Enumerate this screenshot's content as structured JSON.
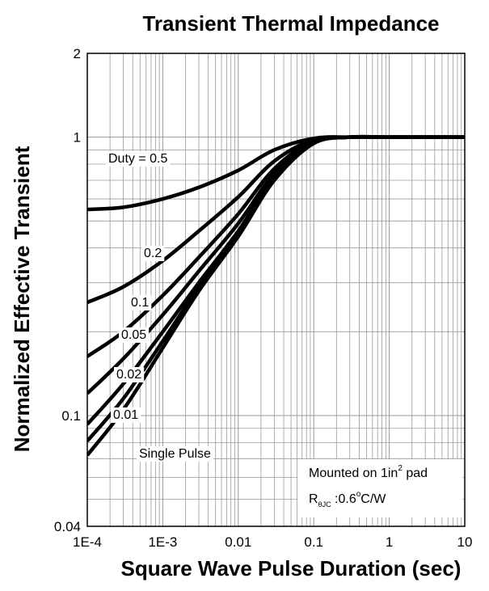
{
  "chart_data": {
    "type": "line",
    "title": "Transient Thermal Impedance",
    "xlabel": "Square Wave Pulse Duration (sec)",
    "ylabel": "Normalized Effective Transient",
    "x_scale": "log",
    "y_scale": "log",
    "xlim": [
      0.0001,
      10
    ],
    "ylim": [
      0.04,
      2
    ],
    "x_ticks": [
      {
        "value": 0.0001,
        "label": "1E-4"
      },
      {
        "value": 0.001,
        "label": "1E-3"
      },
      {
        "value": 0.01,
        "label": "0.01"
      },
      {
        "value": 0.1,
        "label": "0.1"
      },
      {
        "value": 1,
        "label": "1"
      },
      {
        "value": 10,
        "label": "10"
      }
    ],
    "y_ticks": [
      {
        "value": 0.04,
        "label": "0.04"
      },
      {
        "value": 0.1,
        "label": "0.1"
      },
      {
        "value": 1,
        "label": "1"
      },
      {
        "value": 2,
        "label": "2"
      }
    ],
    "grid": true,
    "series": [
      {
        "name": "Duty = 0.5",
        "x": [
          0.0001,
          0.0003,
          0.001,
          0.003,
          0.01,
          0.03,
          0.1,
          0.3,
          1,
          10
        ],
        "y": [
          0.55,
          0.56,
          0.6,
          0.66,
          0.76,
          0.9,
          0.99,
          1.0,
          1.0,
          1.0
        ]
      },
      {
        "name": "0.2",
        "x": [
          0.0001,
          0.0003,
          0.001,
          0.003,
          0.01,
          0.03,
          0.1,
          0.3,
          1,
          10
        ],
        "y": [
          0.255,
          0.29,
          0.36,
          0.46,
          0.61,
          0.82,
          0.98,
          1.0,
          1.0,
          1.0
        ]
      },
      {
        "name": "0.1",
        "x": [
          0.0001,
          0.0003,
          0.001,
          0.003,
          0.01,
          0.03,
          0.1,
          0.3,
          1,
          10
        ],
        "y": [
          0.163,
          0.2,
          0.27,
          0.37,
          0.53,
          0.77,
          0.97,
          1.0,
          1.0,
          1.0
        ]
      },
      {
        "name": "0.05",
        "x": [
          0.0001,
          0.0003,
          0.001,
          0.003,
          0.01,
          0.03,
          0.1,
          0.3,
          1,
          10
        ],
        "y": [
          0.12,
          0.16,
          0.23,
          0.33,
          0.49,
          0.74,
          0.96,
          1.0,
          1.0,
          1.0
        ]
      },
      {
        "name": "0.02",
        "x": [
          0.0001,
          0.0003,
          0.001,
          0.003,
          0.01,
          0.03,
          0.1,
          0.3,
          1,
          10
        ],
        "y": [
          0.093,
          0.13,
          0.2,
          0.3,
          0.46,
          0.72,
          0.96,
          1.0,
          1.0,
          1.0
        ]
      },
      {
        "name": "0.01",
        "x": [
          0.0001,
          0.0003,
          0.001,
          0.003,
          0.01,
          0.03,
          0.1,
          0.3,
          1,
          10
        ],
        "y": [
          0.081,
          0.115,
          0.185,
          0.29,
          0.45,
          0.71,
          0.95,
          1.0,
          1.0,
          1.0
        ]
      },
      {
        "name": "Single Pulse",
        "x": [
          0.0001,
          0.0003,
          0.001,
          0.003,
          0.01,
          0.03,
          0.1,
          0.3,
          1,
          10
        ],
        "y": [
          0.072,
          0.105,
          0.175,
          0.28,
          0.44,
          0.7,
          0.95,
          1.0,
          1.0,
          1.0
        ]
      }
    ],
    "annotations": {
      "mounting": "Mounted on 1in",
      "mounting_sup": "2",
      "mounting_tail": " pad",
      "r_prefix": "R",
      "r_sub": "θJC",
      "r_value": " :0.6",
      "r_deg": "o",
      "r_unit": "C/W"
    }
  }
}
